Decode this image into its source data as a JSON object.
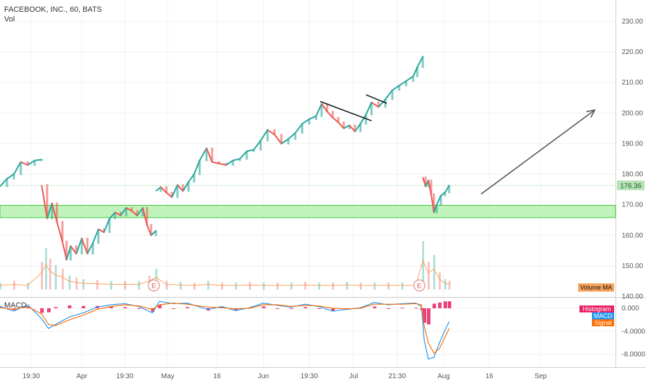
{
  "chart_data": [
    {
      "type": "line",
      "title": "FACEBOOK, INC., 60, BATS",
      "subtitle": "Vol",
      "yaxis_side": "right",
      "ylim": [
        140,
        237
      ],
      "y_ticks": [
        "230.00",
        "220.00",
        "210.00",
        "200.00",
        "190.00",
        "180.00",
        "170.00",
        "160.00",
        "150.00",
        "140.00"
      ],
      "y_tick_values": [
        230,
        220,
        210,
        200,
        190,
        180,
        170,
        160,
        150,
        140
      ],
      "x_ticks": [
        "19:30",
        "Apr",
        "19:30",
        "May",
        "16",
        "Jun",
        "19:30",
        "Jul",
        "21:30",
        "Aug",
        "16",
        "Sep"
      ],
      "last_price": "176.36",
      "last_price_value": 176.36,
      "support_zone": [
        165.8,
        169.8
      ],
      "price_series": {
        "name": "FB",
        "segments": [
          [
            [
              0,
              176.0
            ],
            [
              10,
              178.5
            ],
            [
              20,
              180.0
            ],
            [
              30,
              184.0
            ],
            [
              40,
              183.0
            ],
            [
              50,
              184.5
            ],
            [
              60,
              184.8
            ]
          ],
          [
            [
              60,
              176.5
            ],
            [
              68,
              165.5
            ],
            [
              75,
              170.5
            ],
            [
              82,
              164.5
            ],
            [
              90,
              158.0
            ],
            [
              96,
              152.0
            ],
            [
              102,
              156.5
            ],
            [
              110,
              154.0
            ],
            [
              118,
              159.0
            ],
            [
              126,
              154.0
            ],
            [
              134,
              157.5
            ],
            [
              142,
              162.0
            ],
            [
              150,
              161.0
            ],
            [
              158,
              165.5
            ],
            [
              166,
              167.5
            ],
            [
              174,
              166.5
            ],
            [
              182,
              169.0
            ],
            [
              190,
              168.0
            ],
            [
              198,
              166.5
            ],
            [
              206,
              169.0
            ],
            [
              212,
              163.5
            ],
            [
              218,
              160.0
            ],
            [
              225,
              161.5
            ]
          ],
          [
            [
              225,
              174.5
            ],
            [
              232,
              175.8
            ],
            [
              240,
              174.0
            ],
            [
              248,
              172.5
            ],
            [
              256,
              176.5
            ],
            [
              264,
              174.5
            ],
            [
              272,
              177.5
            ],
            [
              280,
              180.0
            ],
            [
              288,
              184.5
            ],
            [
              298,
              188.5
            ],
            [
              306,
              184.0
            ],
            [
              316,
              183.5
            ],
            [
              326,
              183.0
            ],
            [
              336,
              184.5
            ],
            [
              346,
              185.0
            ],
            [
              356,
              187.5
            ],
            [
              366,
              188.0
            ],
            [
              376,
              191.0
            ],
            [
              386,
              194.5
            ],
            [
              396,
              193.0
            ],
            [
              406,
              190.0
            ],
            [
              416,
              191.5
            ],
            [
              426,
              193.5
            ],
            [
              436,
              196.5
            ],
            [
              446,
              198.0
            ],
            [
              456,
              199.0
            ],
            [
              464,
              203.0
            ],
            [
              472,
              200.5
            ],
            [
              480,
              198.5
            ],
            [
              488,
              197.0
            ],
            [
              496,
              195.0
            ],
            [
              504,
              196.0
            ],
            [
              512,
              194.0
            ],
            [
              520,
              196.5
            ],
            [
              528,
              199.5
            ],
            [
              536,
              203.5
            ],
            [
              546,
              202.0
            ],
            [
              556,
              204.5
            ],
            [
              566,
              207.5
            ],
            [
              576,
              209.0
            ],
            [
              586,
              210.5
            ],
            [
              596,
              212.0
            ],
            [
              602,
              215.0
            ],
            [
              610,
              218.5
            ]
          ],
          [
            [
              610,
              179.0
            ],
            [
              614,
              176.0
            ],
            [
              618,
              178.0
            ],
            [
              622,
              173.5
            ],
            [
              626,
              167.5
            ],
            [
              630,
              170.0
            ],
            [
              636,
              173.0
            ],
            [
              642,
              174.0
            ],
            [
              648,
              176.36
            ]
          ]
        ]
      },
      "volume_series": {
        "name": "Vol",
        "ma_label": "Volume MA",
        "bars": [
          [
            0,
            2
          ],
          [
            20,
            2.5
          ],
          [
            40,
            2
          ],
          [
            60,
            8
          ],
          [
            66,
            12
          ],
          [
            72,
            9
          ],
          [
            80,
            7
          ],
          [
            90,
            6
          ],
          [
            100,
            4
          ],
          [
            110,
            3.5
          ],
          [
            120,
            3
          ],
          [
            140,
            2.8
          ],
          [
            160,
            2.5
          ],
          [
            180,
            2.5
          ],
          [
            200,
            2.5
          ],
          [
            215,
            4
          ],
          [
            225,
            6
          ],
          [
            240,
            2.5
          ],
          [
            260,
            2.2
          ],
          [
            280,
            2
          ],
          [
            300,
            2.5
          ],
          [
            320,
            2
          ],
          [
            340,
            2
          ],
          [
            360,
            2.2
          ],
          [
            380,
            2
          ],
          [
            400,
            2
          ],
          [
            420,
            2
          ],
          [
            440,
            2.2
          ],
          [
            460,
            2
          ],
          [
            480,
            2
          ],
          [
            500,
            2.2
          ],
          [
            520,
            2
          ],
          [
            540,
            2
          ],
          [
            560,
            2
          ],
          [
            580,
            2
          ],
          [
            600,
            2
          ],
          [
            610,
            14
          ],
          [
            618,
            8
          ],
          [
            626,
            10
          ],
          [
            634,
            5
          ],
          [
            642,
            3
          ],
          [
            648,
            2.5
          ]
        ],
        "earnings_markers": [
          "E",
          "E"
        ],
        "earnings_x": [
          222,
          605
        ]
      },
      "annotations": {
        "trendline_1": [
          [
            462,
            203.8
          ],
          [
            536,
            197.5
          ]
        ],
        "trendline_2": [
          [
            528,
            206.0
          ],
          [
            558,
            203.2
          ]
        ],
        "arrow": [
          [
            694,
            173.5
          ],
          [
            858,
            201.0
          ]
        ]
      }
    },
    {
      "type": "line",
      "title": "MACD",
      "ylim": [
        -10.2,
        1.8
      ],
      "y_ticks": [
        "0.000",
        "-4.0000",
        "-8.0000"
      ],
      "y_tick_values": [
        0,
        -4,
        -8
      ],
      "legend": [
        "Histogram",
        "MACD",
        "Signal"
      ],
      "legend_colors": [
        "#e91e63",
        "#2196f3",
        "#ff6d00"
      ],
      "series": [
        {
          "name": "MACD",
          "color": "#2196f3",
          "points": [
            [
              0,
              0.3
            ],
            [
              20,
              -0.5
            ],
            [
              40,
              0.6
            ],
            [
              60,
              -1.8
            ],
            [
              70,
              -3.5
            ],
            [
              80,
              -2.8
            ],
            [
              100,
              -1.5
            ],
            [
              120,
              -0.8
            ],
            [
              140,
              0.2
            ],
            [
              160,
              0.6
            ],
            [
              180,
              0.8
            ],
            [
              200,
              0.3
            ],
            [
              220,
              -0.8
            ],
            [
              230,
              1.2
            ],
            [
              250,
              0.8
            ],
            [
              270,
              0.9
            ],
            [
              300,
              -0.2
            ],
            [
              320,
              0.3
            ],
            [
              340,
              -0.4
            ],
            [
              360,
              0.1
            ],
            [
              380,
              0.9
            ],
            [
              400,
              0.5
            ],
            [
              420,
              0.2
            ],
            [
              440,
              0.7
            ],
            [
              460,
              0.3
            ],
            [
              480,
              -0.5
            ],
            [
              500,
              -0.2
            ],
            [
              520,
              0.1
            ],
            [
              540,
              1.0
            ],
            [
              560,
              0.6
            ],
            [
              580,
              0.8
            ],
            [
              600,
              0.9
            ],
            [
              608,
              0.3
            ],
            [
              612,
              -5.5
            ],
            [
              618,
              -8.8
            ],
            [
              626,
              -8.5
            ],
            [
              634,
              -6.0
            ],
            [
              642,
              -3.8
            ],
            [
              648,
              -2.3
            ]
          ]
        },
        {
          "name": "Signal",
          "color": "#ff6d00",
          "points": [
            [
              0,
              0.1
            ],
            [
              20,
              -0.2
            ],
            [
              40,
              0.3
            ],
            [
              60,
              -1.0
            ],
            [
              70,
              -2.8
            ],
            [
              80,
              -3.0
            ],
            [
              100,
              -2.0
            ],
            [
              120,
              -1.2
            ],
            [
              140,
              -0.2
            ],
            [
              160,
              0.3
            ],
            [
              180,
              0.6
            ],
            [
              200,
              0.4
            ],
            [
              220,
              -0.2
            ],
            [
              230,
              0.6
            ],
            [
              250,
              0.9
            ],
            [
              270,
              0.7
            ],
            [
              300,
              0.2
            ],
            [
              320,
              0.1
            ],
            [
              340,
              -0.1
            ],
            [
              360,
              0.0
            ],
            [
              380,
              0.6
            ],
            [
              400,
              0.6
            ],
            [
              420,
              0.3
            ],
            [
              440,
              0.5
            ],
            [
              460,
              0.4
            ],
            [
              480,
              0.0
            ],
            [
              500,
              -0.1
            ],
            [
              520,
              0.0
            ],
            [
              540,
              0.7
            ],
            [
              560,
              0.7
            ],
            [
              580,
              0.7
            ],
            [
              600,
              0.8
            ],
            [
              608,
              0.6
            ],
            [
              612,
              -3.0
            ],
            [
              618,
              -6.0
            ],
            [
              626,
              -7.8
            ],
            [
              634,
              -7.0
            ],
            [
              642,
              -5.0
            ],
            [
              648,
              -3.5
            ]
          ]
        },
        {
          "name": "Histogram",
          "color": "#e91e63",
          "points": [
            [
              0,
              0.2
            ],
            [
              20,
              -0.3
            ],
            [
              40,
              0.3
            ],
            [
              60,
              -0.8
            ],
            [
              70,
              -0.7
            ],
            [
              80,
              0.2
            ],
            [
              100,
              0.5
            ],
            [
              120,
              0.4
            ],
            [
              140,
              0.4
            ],
            [
              160,
              0.3
            ],
            [
              180,
              0.2
            ],
            [
              200,
              -0.1
            ],
            [
              220,
              -0.6
            ],
            [
              230,
              0.6
            ],
            [
              250,
              -0.1
            ],
            [
              270,
              0.2
            ],
            [
              300,
              -0.4
            ],
            [
              320,
              0.2
            ],
            [
              340,
              -0.3
            ],
            [
              360,
              0.1
            ],
            [
              380,
              0.3
            ],
            [
              400,
              -0.1
            ],
            [
              420,
              -0.1
            ],
            [
              440,
              0.2
            ],
            [
              460,
              -0.1
            ],
            [
              480,
              -0.5
            ],
            [
              500,
              -0.1
            ],
            [
              520,
              0.1
            ],
            [
              540,
              0.3
            ],
            [
              560,
              -0.1
            ],
            [
              580,
              0.1
            ],
            [
              600,
              0.1
            ],
            [
              608,
              -0.3
            ],
            [
              612,
              -2.5
            ],
            [
              618,
              -2.8
            ],
            [
              626,
              0.8
            ],
            [
              634,
              1.0
            ],
            [
              642,
              1.2
            ],
            [
              648,
              1.2
            ]
          ]
        }
      ]
    }
  ],
  "colors": {
    "up": "#26a69a",
    "down": "#ef5350",
    "support_fill": "#b7f0b0",
    "support_stroke": "#3fcf3f",
    "volume_ma": "#f7a35c",
    "axis_text": "#555555",
    "grid": "#f0f0f0"
  }
}
